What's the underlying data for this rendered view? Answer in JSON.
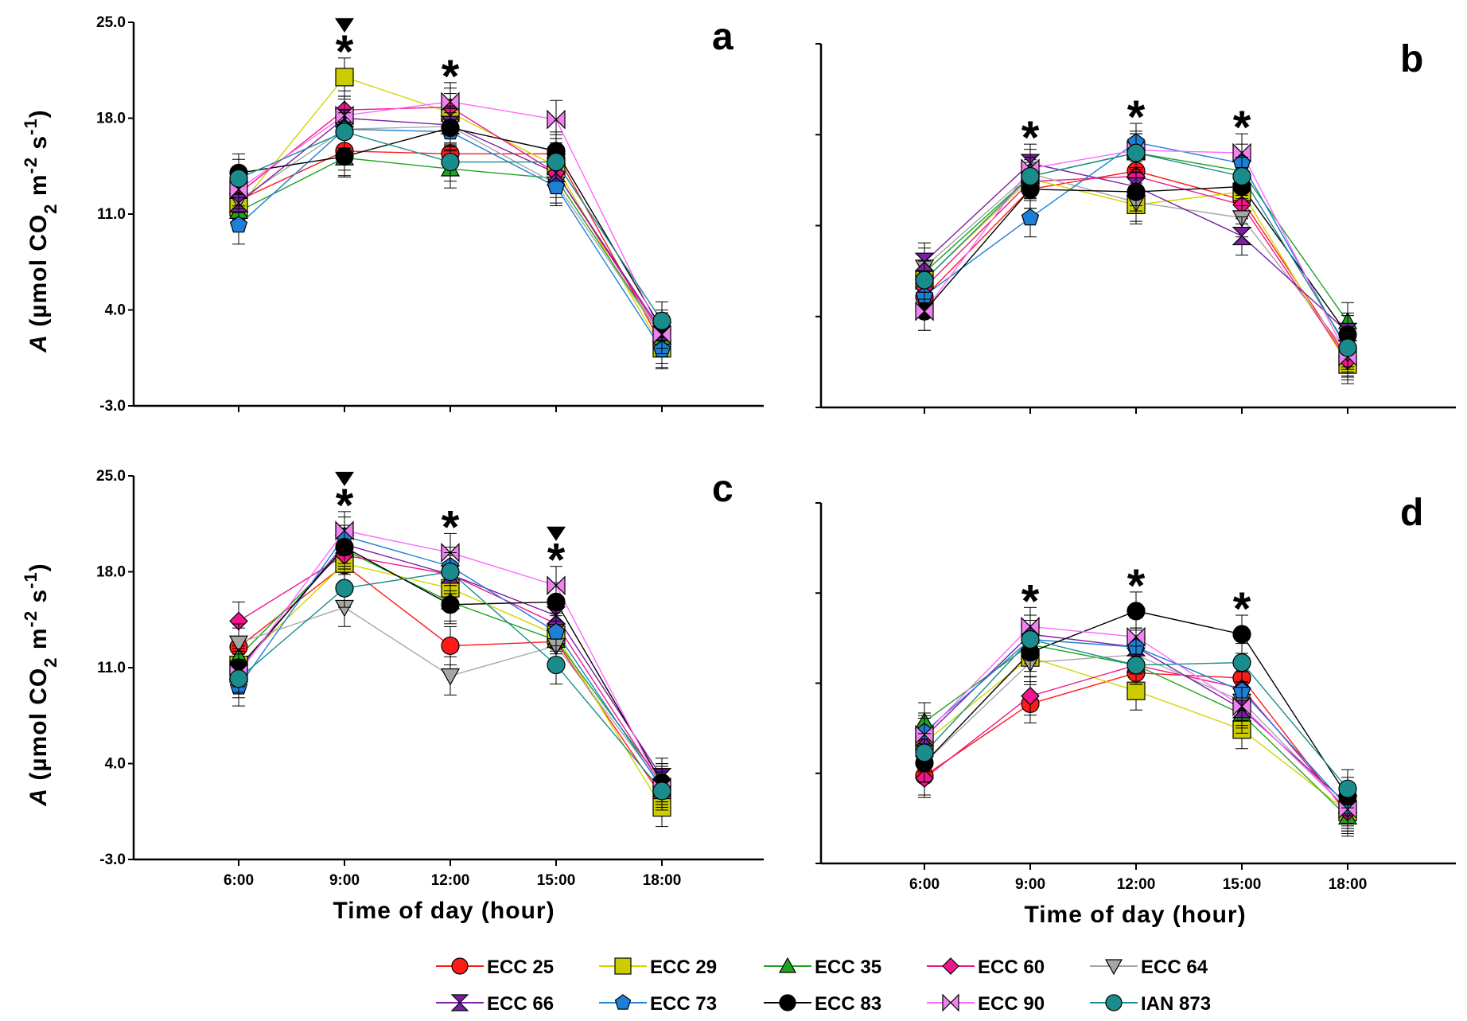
{
  "figure": {
    "x_axis_title": "Time of day (hour)",
    "y_axis_title_italic": "A",
    "y_axis_title_rest": " (µmol CO",
    "y_axis_title_sub": "2",
    "y_axis_title_mid": " m",
    "y_axis_title_sup1": "-2",
    "y_axis_title_mid2": " s",
    "y_axis_title_sup2": "-1",
    "y_axis_title_end": ")"
  },
  "chart_data": [
    {
      "type": "line",
      "panel": "a",
      "xlabel": "Time of day (hour)",
      "ylabel": "A (µmol CO2 m-2 s-1)",
      "categories": [
        "6:00",
        "9:00",
        "12:00",
        "15:00",
        "18:00"
      ],
      "ylim": [
        -3.0,
        25.0
      ],
      "yticks": [
        "-3.0",
        "4.0",
        "11.0",
        "18.0",
        "25.0"
      ],
      "show_y_tick_labels": true,
      "show_x_tick_labels": false,
      "annotations": [
        {
          "x": "9:00",
          "symbol": "*",
          "triangle": true
        },
        {
          "x": "12:00",
          "symbol": "*",
          "triangle": false
        }
      ],
      "series": [
        {
          "name": "ECC 25",
          "values": [
            12.0,
            15.6,
            15.4,
            15.4,
            1.5
          ]
        },
        {
          "name": "ECC 29",
          "values": [
            11.5,
            21.0,
            18.4,
            14.5,
            1.2
          ]
        },
        {
          "name": "ECC 35",
          "values": [
            11.2,
            15.1,
            14.3,
            13.6,
            2.0
          ]
        },
        {
          "name": "ECC 60",
          "values": [
            12.5,
            18.6,
            18.8,
            14.0,
            2.2
          ]
        },
        {
          "name": "ECC 64",
          "values": [
            12.0,
            17.2,
            17.4,
            13.2,
            2.0
          ]
        },
        {
          "name": "ECC 66",
          "values": [
            11.8,
            18.0,
            17.5,
            14.0,
            2.4
          ]
        },
        {
          "name": "ECC 73",
          "values": [
            10.2,
            17.2,
            17.0,
            13.0,
            1.1
          ]
        },
        {
          "name": "ECC 83",
          "values": [
            14.0,
            15.2,
            17.3,
            15.6,
            2.6
          ]
        },
        {
          "name": "ECC 90",
          "values": [
            12.8,
            18.2,
            19.2,
            17.9,
            2.2
          ]
        },
        {
          "name": "IAN 873",
          "values": [
            13.6,
            17.0,
            14.8,
            14.8,
            3.2
          ]
        }
      ]
    },
    {
      "type": "line",
      "panel": "b",
      "xlabel": "Time of day (hour)",
      "ylabel": "A (µmol CO2 m-2 s-1)",
      "categories": [
        "6:00",
        "9:00",
        "12:00",
        "15:00",
        "18:00"
      ],
      "ylim": [
        -3.0,
        25.0
      ],
      "yticks": [
        "-3.0",
        "4.0",
        "11.0",
        "18.0",
        "25.0"
      ],
      "show_y_tick_labels": false,
      "show_x_tick_labels": false,
      "annotations": [
        {
          "x": "9:00",
          "symbol": "*",
          "triangle": false
        },
        {
          "x": "12:00",
          "symbol": "*",
          "triangle": false
        },
        {
          "x": "15:00",
          "symbol": "*",
          "triangle": false
        }
      ],
      "series": [
        {
          "name": "ECC 25",
          "values": [
            5.5,
            13.8,
            15.2,
            13.0,
            0.8
          ]
        },
        {
          "name": "ECC 29",
          "values": [
            6.8,
            14.6,
            12.6,
            13.6,
            0.3
          ]
        },
        {
          "name": "ECC 35",
          "values": [
            7.4,
            14.8,
            16.6,
            15.2,
            3.6
          ]
        },
        {
          "name": "ECC 60",
          "values": [
            6.2,
            14.4,
            14.8,
            12.6,
            0.6
          ]
        },
        {
          "name": "ECC 64",
          "values": [
            7.8,
            15.0,
            12.8,
            11.6,
            1.2
          ]
        },
        {
          "name": "ECC 66",
          "values": [
            8.2,
            15.8,
            14.0,
            10.2,
            2.8
          ]
        },
        {
          "name": "ECC 73",
          "values": [
            5.6,
            11.6,
            17.4,
            15.8,
            1.4
          ]
        },
        {
          "name": "ECC 83",
          "values": [
            4.4,
            13.8,
            13.6,
            14.0,
            2.6
          ]
        },
        {
          "name": "ECC 90",
          "values": [
            4.4,
            15.4,
            16.8,
            16.6,
            0.9
          ]
        },
        {
          "name": "IAN 873",
          "values": [
            6.8,
            14.8,
            16.6,
            14.8,
            1.6
          ]
        }
      ]
    },
    {
      "type": "line",
      "panel": "c",
      "xlabel": "Time of day (hour)",
      "ylabel": "A (µmol CO2 m-2 s-1)",
      "categories": [
        "6:00",
        "9:00",
        "12:00",
        "15:00",
        "18:00"
      ],
      "ylim": [
        -3.0,
        25.0
      ],
      "yticks": [
        "-3.0",
        "4.0",
        "11.0",
        "18.0",
        "25.0"
      ],
      "show_y_tick_labels": true,
      "show_x_tick_labels": true,
      "annotations": [
        {
          "x": "9:00",
          "symbol": "*",
          "triangle": true
        },
        {
          "x": "12:00",
          "symbol": "*",
          "triangle": false
        },
        {
          "x": "15:00",
          "symbol": "*",
          "triangle": true
        }
      ],
      "series": [
        {
          "name": "ECC 25",
          "values": [
            12.5,
            18.5,
            12.6,
            12.9,
            1.6
          ]
        },
        {
          "name": "ECC 29",
          "values": [
            11.2,
            18.6,
            16.8,
            13.4,
            0.8
          ]
        },
        {
          "name": "ECC 35",
          "values": [
            11.8,
            19.6,
            15.8,
            13.0,
            2.6
          ]
        },
        {
          "name": "ECC 60",
          "values": [
            14.4,
            19.2,
            17.8,
            14.2,
            2.4
          ]
        },
        {
          "name": "ECC 64",
          "values": [
            12.8,
            15.4,
            10.4,
            12.6,
            2.4
          ]
        },
        {
          "name": "ECC 66",
          "values": [
            10.8,
            20.0,
            17.8,
            14.8,
            3.0
          ]
        },
        {
          "name": "ECC 73",
          "values": [
            9.6,
            20.6,
            18.4,
            13.6,
            2.2
          ]
        },
        {
          "name": "ECC 83",
          "values": [
            11.0,
            19.8,
            15.6,
            15.8,
            2.6
          ]
        },
        {
          "name": "ECC 90",
          "values": [
            10.6,
            21.0,
            19.4,
            17.0,
            2.2
          ]
        },
        {
          "name": "IAN 873",
          "values": [
            10.2,
            16.8,
            18.0,
            11.2,
            2.0
          ]
        }
      ]
    },
    {
      "type": "line",
      "panel": "d",
      "xlabel": "Time of day (hour)",
      "ylabel": "A (µmol CO2 m-2 s-1)",
      "categories": [
        "6:00",
        "9:00",
        "12:00",
        "15:00",
        "18:00"
      ],
      "ylim": [
        -3.0,
        25.0
      ],
      "yticks": [
        "-3.0",
        "4.0",
        "11.0",
        "18.0",
        "25.0"
      ],
      "show_y_tick_labels": false,
      "show_x_tick_labels": true,
      "annotations": [
        {
          "x": "9:00",
          "symbol": "*",
          "triangle": false
        },
        {
          "x": "12:00",
          "symbol": "*",
          "triangle": false
        },
        {
          "x": "15:00",
          "symbol": "*",
          "triangle": false
        }
      ],
      "series": [
        {
          "name": "ECC 25",
          "values": [
            3.8,
            9.4,
            11.8,
            11.4,
            0.8
          ]
        },
        {
          "name": "ECC 29",
          "values": [
            6.4,
            13.0,
            10.4,
            7.4,
            1.0
          ]
        },
        {
          "name": "ECC 35",
          "values": [
            8.0,
            14.0,
            12.4,
            8.6,
            0.6
          ]
        },
        {
          "name": "ECC 60",
          "values": [
            3.6,
            10.0,
            12.4,
            10.6,
            1.0
          ]
        },
        {
          "name": "ECC 64",
          "values": [
            4.8,
            12.6,
            13.2,
            9.6,
            1.2
          ]
        },
        {
          "name": "ECC 66",
          "values": [
            6.8,
            14.8,
            13.8,
            9.0,
            1.6
          ]
        },
        {
          "name": "ECC 73",
          "values": [
            7.2,
            14.4,
            13.8,
            10.4,
            1.4
          ]
        },
        {
          "name": "ECC 83",
          "values": [
            4.8,
            13.4,
            16.6,
            14.8,
            2.2
          ]
        },
        {
          "name": "ECC 90",
          "values": [
            7.0,
            15.4,
            14.6,
            9.2,
            1.2
          ]
        },
        {
          "name": "IAN 873",
          "values": [
            5.6,
            14.4,
            12.4,
            12.6,
            2.8
          ]
        }
      ]
    }
  ],
  "legend": {
    "entries": [
      {
        "name": "ECC 25",
        "color": "#ff1a1a",
        "line": "#ff1a1a",
        "marker": "circle"
      },
      {
        "name": "ECC 29",
        "color": "#cccc00",
        "line": "#d4d400",
        "marker": "square"
      },
      {
        "name": "ECC 35",
        "color": "#1fa31f",
        "line": "#1fa31f",
        "marker": "triangle-up"
      },
      {
        "name": "ECC 60",
        "color": "#f0158a",
        "line": "#f0158a",
        "marker": "diamond"
      },
      {
        "name": "ECC 64",
        "color": "#a6a6a6",
        "line": "#a6a6a6",
        "marker": "triangle-down"
      },
      {
        "name": "ECC 66",
        "color": "#7b1fa2",
        "line": "#7b1fa2",
        "marker": "hourglass"
      },
      {
        "name": "ECC 73",
        "color": "#1e7fd6",
        "line": "#1e7fd6",
        "marker": "pentagon"
      },
      {
        "name": "ECC 83",
        "color": "#000000",
        "line": "#000000",
        "marker": "circle"
      },
      {
        "name": "ECC 90",
        "color": "#ee82ee",
        "line": "#ff66ff",
        "marker": "bowtie"
      },
      {
        "name": "IAN 873",
        "color": "#1a8c8c",
        "line": "#1a8c8c",
        "marker": "circle"
      }
    ]
  }
}
